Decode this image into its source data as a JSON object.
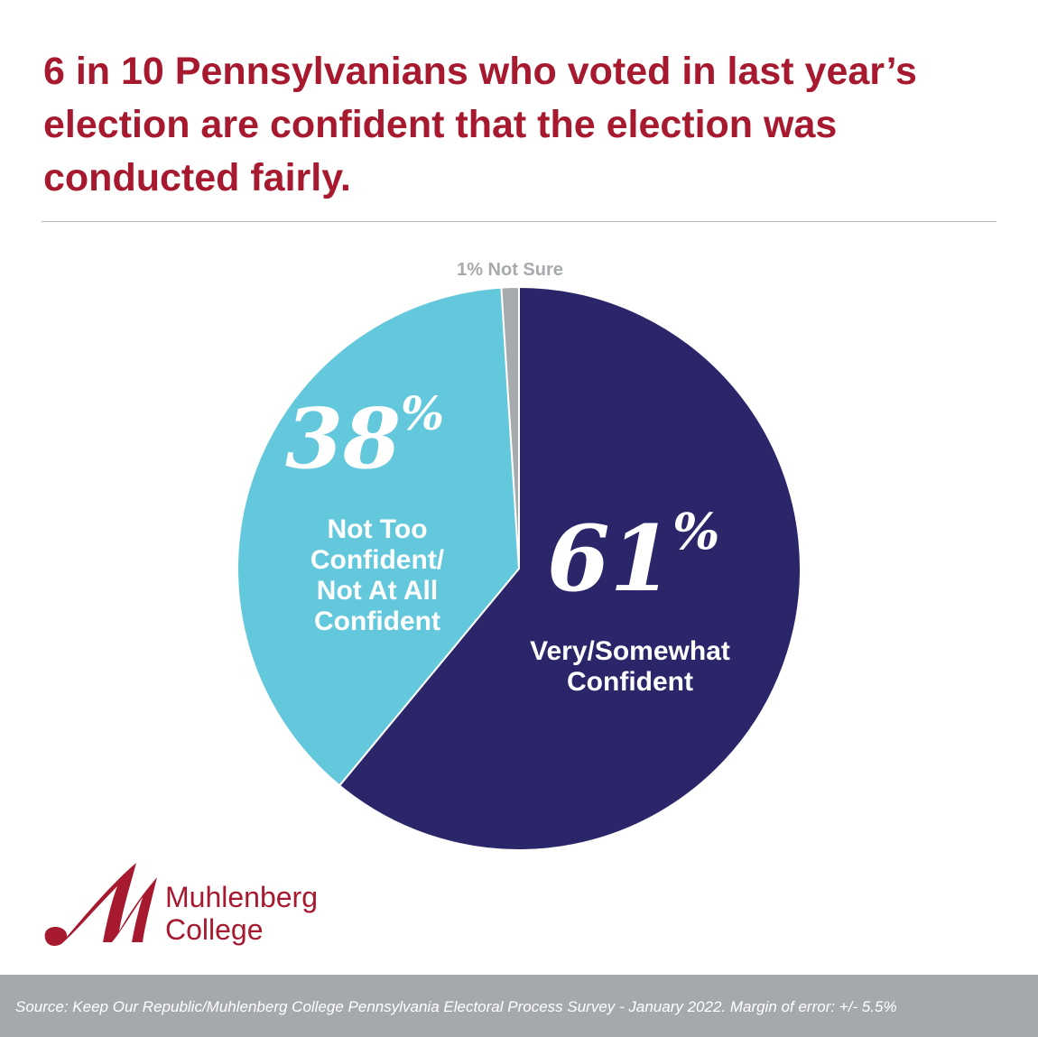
{
  "title": "6 in 10 Pennsylvanians who voted in last year’s election are confident that the election was conducted fairly.",
  "chart_data": {
    "type": "pie",
    "start": "top, clockwise",
    "slices": [
      {
        "label": "Very/Somewhat Confident",
        "value": 61,
        "value_label": "61",
        "color": "#2b2569"
      },
      {
        "label": "Not Too Confident/ Not At All Confident",
        "value": 38,
        "value_label": "38",
        "color": "#64c8dc"
      },
      {
        "label": "Not Sure",
        "value": 1,
        "value_label": "1% Not Sure",
        "color": "#a7aaad"
      }
    ],
    "percent_sign": "%"
  },
  "logo": {
    "line1": "Muhlenberg",
    "line2": "College",
    "mark": "M",
    "color": "#a6192e"
  },
  "footer": {
    "source": "Source: Keep Our Republic/Muhlenberg College Pennsylvania Electoral Process Survey - January 2022. Margin of error: +/- 5.5%"
  }
}
